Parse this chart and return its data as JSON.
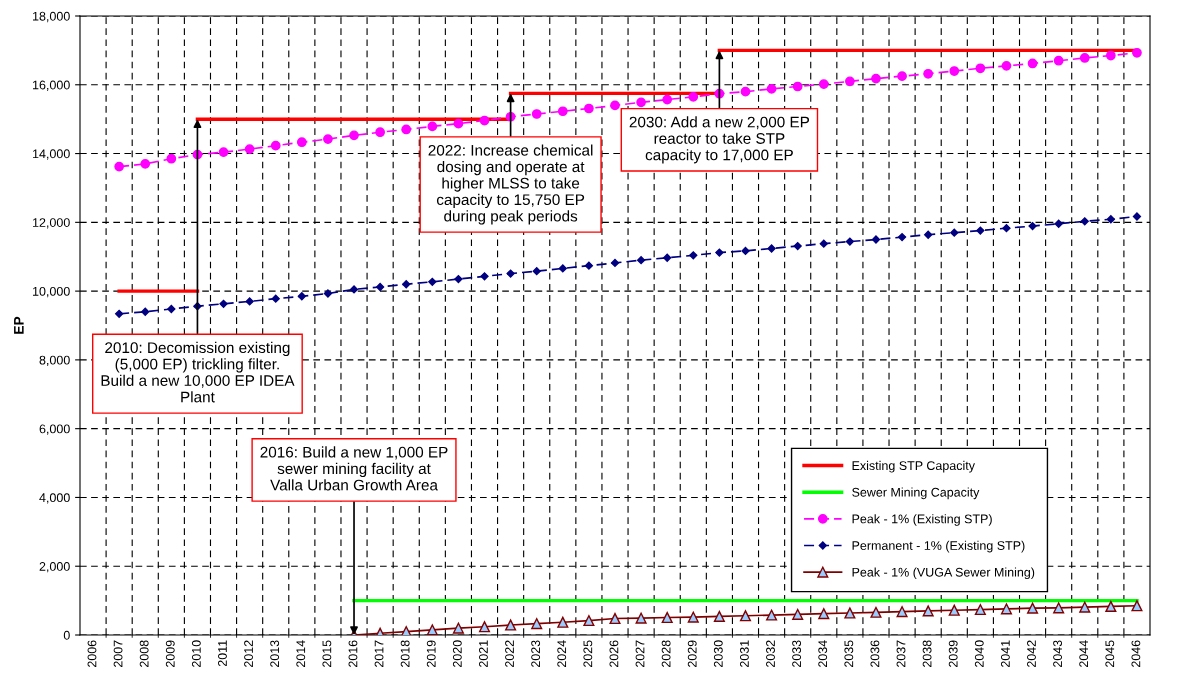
{
  "chart_data": {
    "type": "line",
    "ylabel": "EP",
    "categories": [
      "2006",
      "2007",
      "2008",
      "2009",
      "2010",
      "2011",
      "2012",
      "2013",
      "2014",
      "2015",
      "2016",
      "2017",
      "2018",
      "2019",
      "2020",
      "2021",
      "2022",
      "2023",
      "2024",
      "2025",
      "2026",
      "2027",
      "2028",
      "2029",
      "2030",
      "2031",
      "2032",
      "2033",
      "2034",
      "2035",
      "2036",
      "2037",
      "2038",
      "2039",
      "2040",
      "2041",
      "2042",
      "2043",
      "2044",
      "2045",
      "2046"
    ],
    "ylim": [
      0,
      18000
    ],
    "yticks": [
      {
        "value": 0,
        "label": "0"
      },
      {
        "value": 2000,
        "label": "2,000"
      },
      {
        "value": 4000,
        "label": "4,000"
      },
      {
        "value": 6000,
        "label": "6,000"
      },
      {
        "value": 8000,
        "label": "8,000"
      },
      {
        "value": 10000,
        "label": "10,000"
      },
      {
        "value": 12000,
        "label": "12,000"
      },
      {
        "value": 14000,
        "label": "14,000"
      },
      {
        "value": 16000,
        "label": "16,000"
      },
      {
        "value": 18000,
        "label": "18,000"
      }
    ],
    "grid": true,
    "legend": "bottom right",
    "series": [
      {
        "name": "Existing STP Capacity",
        "color": "#ff0000",
        "marker": "none",
        "line_style": "solid",
        "values": [
          null,
          10000,
          10000,
          10000,
          10000,
          null,
          null,
          null,
          null,
          null,
          null,
          null,
          null,
          null,
          null,
          null,
          null,
          null,
          null,
          null,
          null,
          null,
          null,
          null,
          null,
          null,
          null,
          null,
          null,
          null,
          null,
          null,
          null,
          null,
          null,
          null,
          null,
          null,
          null,
          null,
          null
        ]
      },
      {
        "color": "#ff0000",
        "marker": "none",
        "line_style": "solid",
        "values": [
          null,
          null,
          null,
          null,
          15000,
          15000,
          15000,
          15000,
          15000,
          15000,
          15000,
          15000,
          15000,
          15000,
          15000,
          15000,
          15000,
          null,
          null,
          null,
          null,
          null,
          null,
          null,
          null,
          null,
          null,
          null,
          null,
          null,
          null,
          null,
          null,
          null,
          null,
          null,
          null,
          null,
          null,
          null,
          null
        ]
      },
      {
        "color": "#ff0000",
        "marker": "none",
        "line_style": "solid",
        "values": [
          null,
          null,
          null,
          null,
          null,
          null,
          null,
          null,
          null,
          null,
          null,
          null,
          null,
          null,
          null,
          null,
          15750,
          15750,
          15750,
          15750,
          15750,
          15750,
          15750,
          15750,
          15750,
          null,
          null,
          null,
          null,
          null,
          null,
          null,
          null,
          null,
          null,
          null,
          null,
          null,
          null,
          null,
          null
        ]
      },
      {
        "color": "#ff0000",
        "marker": "none",
        "line_style": "solid",
        "values": [
          null,
          null,
          null,
          null,
          null,
          null,
          null,
          null,
          null,
          null,
          null,
          null,
          null,
          null,
          null,
          null,
          null,
          null,
          null,
          null,
          null,
          null,
          null,
          null,
          17000,
          17000,
          17000,
          17000,
          17000,
          17000,
          17000,
          17000,
          17000,
          17000,
          17000,
          17000,
          17000,
          17000,
          17000,
          17000,
          17000
        ]
      },
      {
        "name": "Sewer Mining Capacity",
        "color": "#00ff00",
        "marker": "none",
        "line_style": "solid",
        "values": [
          null,
          null,
          null,
          null,
          null,
          null,
          null,
          null,
          null,
          null,
          1000,
          1000,
          1000,
          1000,
          1000,
          1000,
          1000,
          1000,
          1000,
          1000,
          1000,
          1000,
          1000,
          1000,
          1000,
          1000,
          1000,
          1000,
          1000,
          1000,
          1000,
          1000,
          1000,
          1000,
          1000,
          1000,
          1000,
          1000,
          1000,
          1000,
          1000
        ]
      },
      {
        "name": "Peak - 1% (Existing STP)",
        "color": "#ff00ff",
        "marker": "circle",
        "line_style": "dashed",
        "values": [
          null,
          13620,
          13700,
          13850,
          13970,
          14040,
          14130,
          14230,
          14330,
          14420,
          14530,
          14620,
          14700,
          14790,
          14870,
          14960,
          15070,
          15150,
          15230,
          15310,
          15400,
          15490,
          15570,
          15650,
          15740,
          15800,
          15880,
          15950,
          16020,
          16100,
          16180,
          16250,
          16320,
          16400,
          16480,
          16550,
          16620,
          16700,
          16780,
          16850,
          16930
        ]
      },
      {
        "name": "Permanent - 1% (Existing STP)",
        "color": "#000080",
        "marker": "diamond",
        "line_style": "dashed",
        "values": [
          null,
          9340,
          9400,
          9480,
          9560,
          9630,
          9700,
          9780,
          9850,
          9930,
          10050,
          10120,
          10200,
          10270,
          10350,
          10430,
          10510,
          10580,
          10660,
          10740,
          10820,
          10900,
          10970,
          11040,
          11120,
          11170,
          11240,
          11310,
          11380,
          11440,
          11500,
          11570,
          11640,
          11700,
          11760,
          11830,
          11890,
          11960,
          12030,
          12090,
          12170
        ]
      },
      {
        "name": "Peak - 1% (VUGA Sewer Mining)",
        "color": "#800000",
        "marker": "triangle",
        "line_style": "solid",
        "values": [
          null,
          null,
          null,
          null,
          null,
          null,
          null,
          null,
          null,
          null,
          0,
          50,
          100,
          150,
          200,
          240,
          290,
          330,
          370,
          420,
          480,
          490,
          510,
          520,
          540,
          560,
          580,
          600,
          620,
          640,
          660,
          680,
          700,
          720,
          740,
          760,
          780,
          790,
          810,
          830,
          850
        ]
      }
    ],
    "annotations": [
      {
        "text": "2010: Decomission existing (5,000 EP) trickling filter. Build a new 10,000 EP IDEA Plant",
        "x": "2010",
        "y": 15000
      },
      {
        "text": "2016: Build a new 1,000 EP sewer mining facility at Valla Urban Growth Area",
        "x": "2016",
        "y": 0
      },
      {
        "text": "2022: Increase chemical dosing and operate at higher MLSS to take capacity to 15,750 EP during peak periods",
        "x": "2022",
        "y": 15750
      },
      {
        "text": "2030: Add a new 2,000 EP reactor to take STP capacity to 17,000 EP",
        "x": "2030",
        "y": 17000
      }
    ]
  }
}
